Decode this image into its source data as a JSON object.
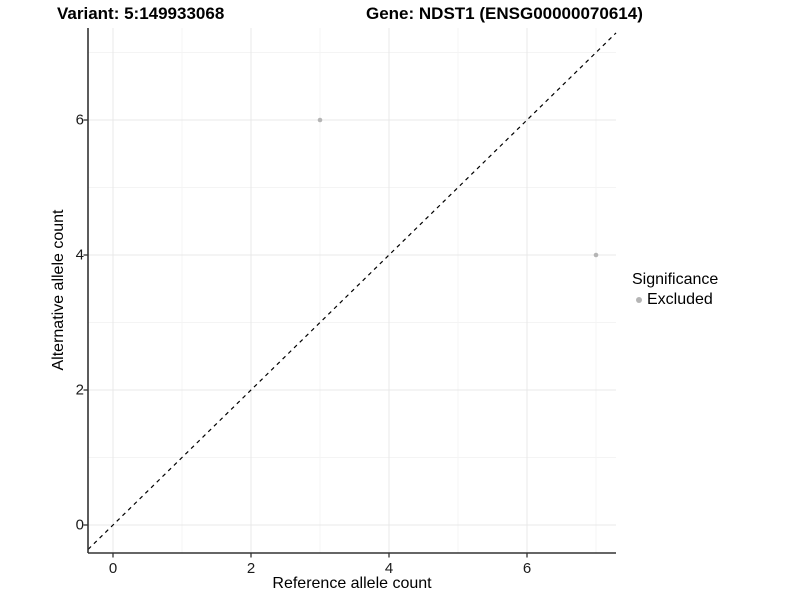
{
  "chart_data": {
    "type": "scatter",
    "title_left": "Variant: 5:149933068",
    "title_right": "Gene: NDST1 (ENSG00000070614)",
    "xlabel": "Reference allele count",
    "ylabel": "Alternative allele count",
    "x_ticks": [
      0,
      2,
      4,
      6
    ],
    "y_ticks": [
      0,
      2,
      4,
      6
    ],
    "x_minor": [
      1,
      3,
      5,
      7
    ],
    "y_minor": [
      1,
      3,
      5,
      7
    ],
    "xlim": [
      -0.36,
      7.29
    ],
    "ylim": [
      -0.42,
      7.36
    ],
    "grid": "major+minor",
    "identity_line": {
      "slope": 1,
      "intercept": 0,
      "linetype": "dashed",
      "color": "#000000"
    },
    "series": [
      {
        "name": "Excluded",
        "color": "#b5b5b5",
        "points": [
          [
            3,
            6
          ],
          [
            7,
            4
          ]
        ]
      }
    ],
    "legend": {
      "position": "right",
      "title": "Significance",
      "items": [
        {
          "label": "Excluded",
          "color": "#b5b5b5"
        }
      ]
    },
    "colors": {
      "grid_major": "#e8e8e8",
      "grid_minor": "#f4f4f4",
      "axis": "#333333",
      "tick": "#333333",
      "point": "#b5b5b5"
    }
  }
}
